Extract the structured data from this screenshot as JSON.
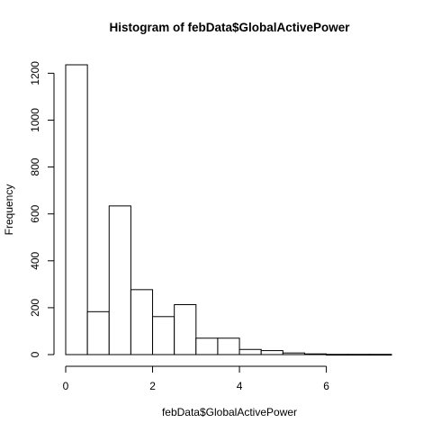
{
  "chart_data": {
    "type": "bar",
    "title": "Histogram of febData$GlobalActivePower",
    "xlabel": "febData$GlobalActivePower",
    "ylabel": "Frequency",
    "bins": [
      {
        "from": 0.0,
        "to": 0.5,
        "count": 1236
      },
      {
        "from": 0.5,
        "to": 1.0,
        "count": 183
      },
      {
        "from": 1.0,
        "to": 1.5,
        "count": 634
      },
      {
        "from": 1.5,
        "to": 2.0,
        "count": 277
      },
      {
        "from": 2.0,
        "to": 2.5,
        "count": 162
      },
      {
        "from": 2.5,
        "to": 3.0,
        "count": 213
      },
      {
        "from": 3.0,
        "to": 3.5,
        "count": 70
      },
      {
        "from": 3.5,
        "to": 4.0,
        "count": 70
      },
      {
        "from": 4.0,
        "to": 4.5,
        "count": 22
      },
      {
        "from": 4.5,
        "to": 5.0,
        "count": 17
      },
      {
        "from": 5.0,
        "to": 5.5,
        "count": 7
      },
      {
        "from": 5.5,
        "to": 6.0,
        "count": 3
      },
      {
        "from": 6.0,
        "to": 6.5,
        "count": 1
      },
      {
        "from": 6.5,
        "to": 7.0,
        "count": 1
      },
      {
        "from": 7.0,
        "to": 7.5,
        "count": 1
      }
    ],
    "xlim": [
      0,
      7.5
    ],
    "ylim": [
      0,
      1236
    ],
    "x_ticks": [
      0,
      2,
      4,
      6
    ],
    "y_ticks": [
      0,
      200,
      400,
      600,
      800,
      1000,
      1200
    ],
    "grid": false
  }
}
